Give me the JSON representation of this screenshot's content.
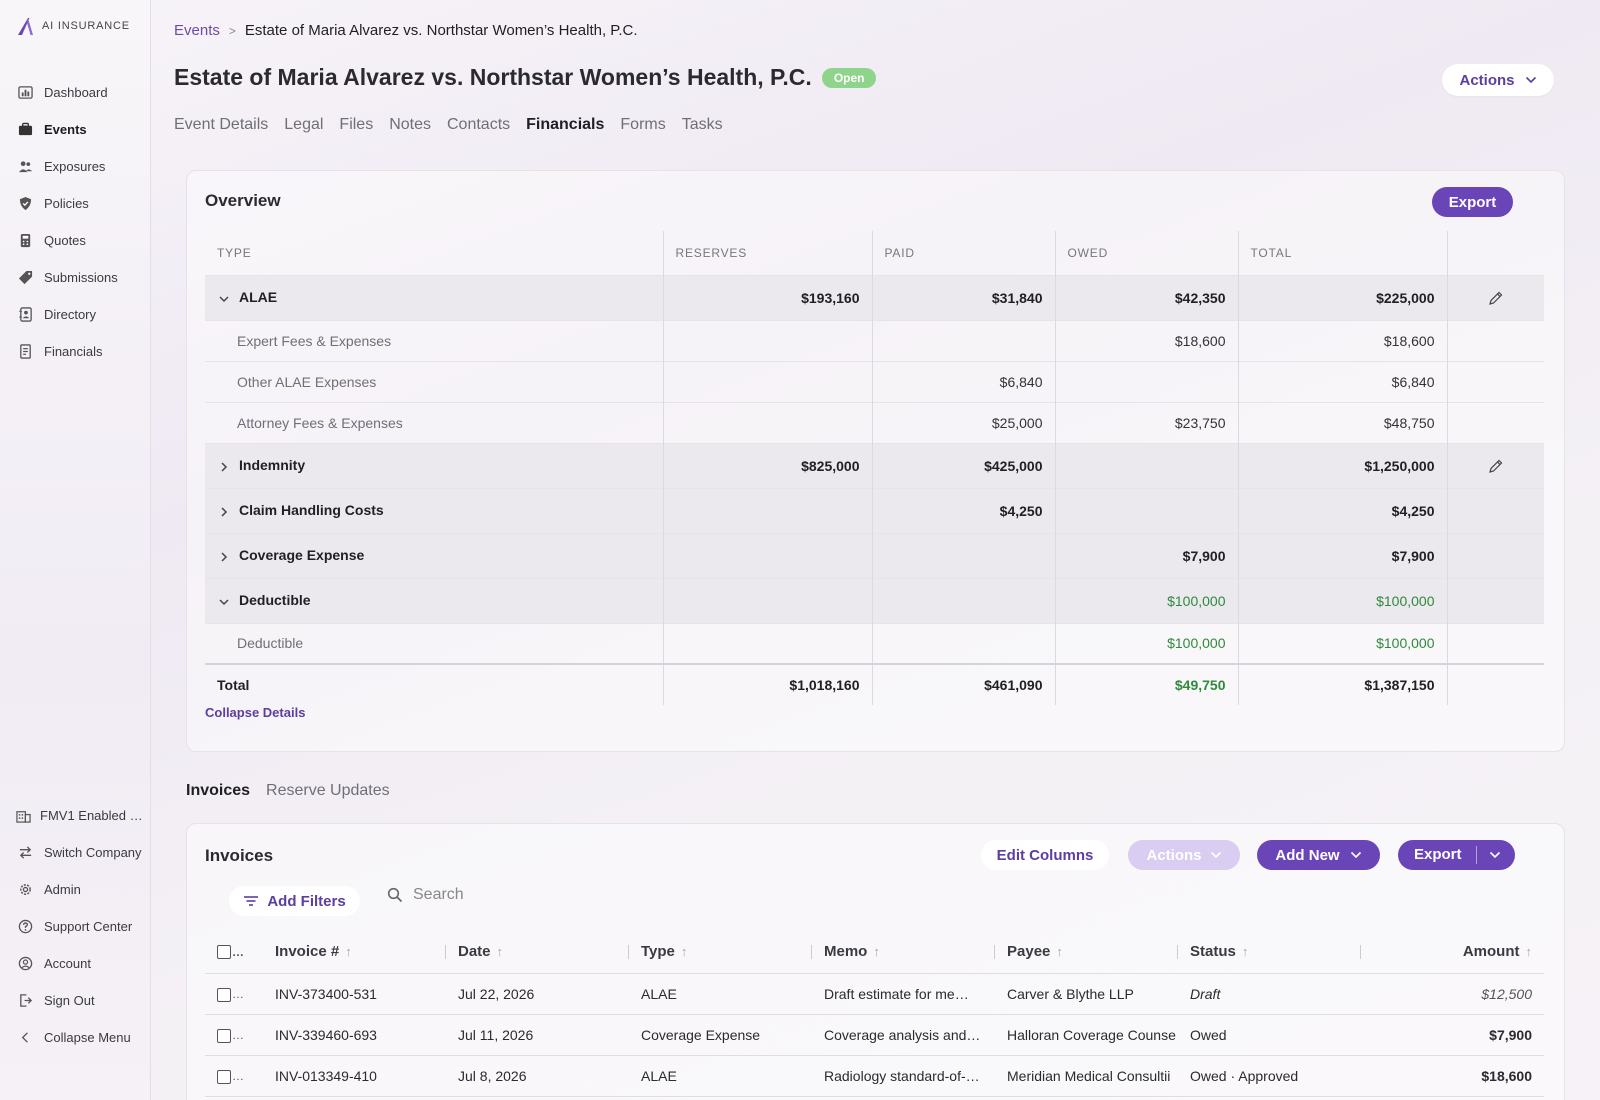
{
  "app": {
    "logo_text": "AI INSURANCE"
  },
  "sidebar": {
    "items": [
      {
        "label": "Dashboard",
        "icon": "chart-icon"
      },
      {
        "label": "Events",
        "icon": "briefcase-icon"
      },
      {
        "label": "Exposures",
        "icon": "people-icon"
      },
      {
        "label": "Policies",
        "icon": "shield-icon"
      },
      {
        "label": "Quotes",
        "icon": "calculator-icon"
      },
      {
        "label": "Submissions",
        "icon": "tag-icon"
      },
      {
        "label": "Directory",
        "icon": "contacts-icon"
      },
      {
        "label": "Financials",
        "icon": "receipt-icon"
      }
    ],
    "bottom": [
      {
        "label": "FMV1 Enabled …",
        "icon": "building-icon"
      },
      {
        "label": "Switch Company",
        "icon": "swap-icon"
      },
      {
        "label": "Admin",
        "icon": "gear-icon"
      },
      {
        "label": "Support Center",
        "icon": "help-icon"
      },
      {
        "label": "Account",
        "icon": "user-circle-icon"
      },
      {
        "label": "Sign Out",
        "icon": "sign-out-icon"
      },
      {
        "label": "Collapse Menu",
        "icon": "chevron-left-icon"
      }
    ]
  },
  "breadcrumb": {
    "parent": "Events",
    "separator": ">",
    "current": "Estate of Maria Alvarez vs. Northstar Women’s Health, P.C."
  },
  "header": {
    "title": "Estate of Maria Alvarez vs. Northstar Women’s Health, P.C.",
    "status": "Open",
    "actions_label": "Actions"
  },
  "tabs": [
    "Event Details",
    "Legal",
    "Files",
    "Notes",
    "Contacts",
    "Financials",
    "Forms",
    "Tasks"
  ],
  "overview": {
    "title": "Overview",
    "export_label": "Export",
    "columns": [
      "TYPE",
      "RESERVES",
      "PAID",
      "OWED",
      "TOTAL"
    ],
    "groups": [
      {
        "label": "ALAE",
        "expanded": true,
        "reserves": "$193,160",
        "paid": "$31,840",
        "owed": "$42,350",
        "total": "$225,000",
        "editable": true,
        "rows": [
          {
            "label": "Expert Fees & Expenses",
            "reserves": "",
            "paid": "",
            "owed": "$18,600",
            "total": "$18,600"
          },
          {
            "label": "Other ALAE Expenses",
            "reserves": "",
            "paid": "$6,840",
            "owed": "",
            "total": "$6,840"
          },
          {
            "label": "Attorney Fees & Expenses",
            "reserves": "",
            "paid": "$25,000",
            "owed": "$23,750",
            "total": "$48,750"
          }
        ]
      },
      {
        "label": "Indemnity",
        "expanded": false,
        "reserves": "$825,000",
        "paid": "$425,000",
        "owed": "",
        "total": "$1,250,000",
        "editable": true,
        "rows": []
      },
      {
        "label": "Claim Handling Costs",
        "expanded": false,
        "reserves": "",
        "paid": "$4,250",
        "owed": "",
        "total": "$4,250",
        "editable": false,
        "rows": []
      },
      {
        "label": "Coverage Expense",
        "expanded": false,
        "reserves": "",
        "paid": "",
        "owed": "$7,900",
        "total": "$7,900",
        "editable": false,
        "rows": []
      },
      {
        "label": "Deductible",
        "expanded": true,
        "reserves": "",
        "paid": "",
        "owed": "$100,000",
        "total": "$100,000",
        "editable": false,
        "green": true,
        "rows": [
          {
            "label": "Deductible",
            "reserves": "",
            "paid": "",
            "owed": "$100,000",
            "total": "$100,000",
            "green": true
          }
        ]
      }
    ],
    "total": {
      "label": "Total",
      "reserves": "$1,018,160",
      "paid": "$461,090",
      "owed": "$49,750",
      "total": "$1,387,150"
    },
    "collapse_label": "Collapse Details"
  },
  "subtabs": [
    "Invoices",
    "Reserve Updates"
  ],
  "invoices": {
    "title": "Invoices",
    "edit_columns_label": "Edit Columns",
    "actions_label": "Actions",
    "add_new_label": "Add New",
    "export_label": "Export",
    "add_filters_label": "Add Filters",
    "search_placeholder": "Search",
    "columns": [
      "Invoice #",
      "Date",
      "Type",
      "Memo",
      "Payee",
      "Status",
      "Amount"
    ],
    "rows": [
      {
        "invoice": "INV-373400-531",
        "date": "Jul 22, 2026",
        "type": "ALAE",
        "memo": "Draft estimate for me…",
        "payee": "Carver & Blythe LLP",
        "status": "Draft",
        "amount": "$12,500",
        "draft": true
      },
      {
        "invoice": "INV-339460-693",
        "date": "Jul 11, 2026",
        "type": "Coverage Expense",
        "memo": "Coverage analysis and…",
        "payee": "Halloran Coverage Counse",
        "status": "Owed",
        "amount": "$7,900",
        "draft": false
      },
      {
        "invoice": "INV-013349-410",
        "date": "Jul 8, 2026",
        "type": "ALAE",
        "memo": "Radiology standard-of-…",
        "payee": "Meridian Medical Consultii",
        "status": "Owed · Approved",
        "amount": "$18,600",
        "draft": false
      }
    ]
  },
  "colors": {
    "accent": "#6a45b8",
    "link": "#6b4ba8",
    "open_badge": "#8fd48b",
    "green_value": "#2f8a3c"
  }
}
